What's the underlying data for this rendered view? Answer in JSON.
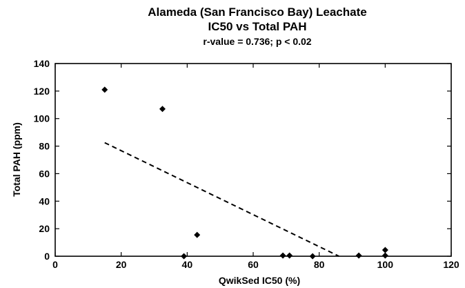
{
  "chart_data": {
    "type": "scatter",
    "title": "Alameda (San Francisco Bay) Leachate",
    "title_line2": "IC50 vs Total PAH",
    "subtitle": "r-value = 0.736; p < 0.02",
    "xlabel": "QwikSed IC50 (%)",
    "ylabel": "Total PAH (ppm)",
    "xlim": [
      0,
      120
    ],
    "ylim": [
      0,
      140
    ],
    "xticks": [
      "0",
      "20",
      "40",
      "60",
      "80",
      "100",
      "120"
    ],
    "yticks": [
      "0",
      "20",
      "40",
      "60",
      "80",
      "100",
      "120",
      "140"
    ],
    "x_tick_values": [
      0,
      20,
      40,
      60,
      80,
      100,
      120
    ],
    "y_tick_values": [
      0,
      20,
      40,
      60,
      80,
      100,
      120,
      140
    ],
    "grid": false,
    "marker": "diamond",
    "points": [
      {
        "x": 15,
        "y": 121
      },
      {
        "x": 32.5,
        "y": 107
      },
      {
        "x": 39,
        "y": 0
      },
      {
        "x": 43,
        "y": 15.5
      },
      {
        "x": 69,
        "y": 0.5
      },
      {
        "x": 71,
        "y": 0.5
      },
      {
        "x": 78,
        "y": 0
      },
      {
        "x": 92,
        "y": 0.5
      },
      {
        "x": 100,
        "y": 0.5
      },
      {
        "x": 100,
        "y": 4.5
      }
    ],
    "trendline": {
      "style": "dashed",
      "points": [
        {
          "x": 15,
          "y": 82.5
        },
        {
          "x": 86,
          "y": 0
        }
      ]
    }
  }
}
